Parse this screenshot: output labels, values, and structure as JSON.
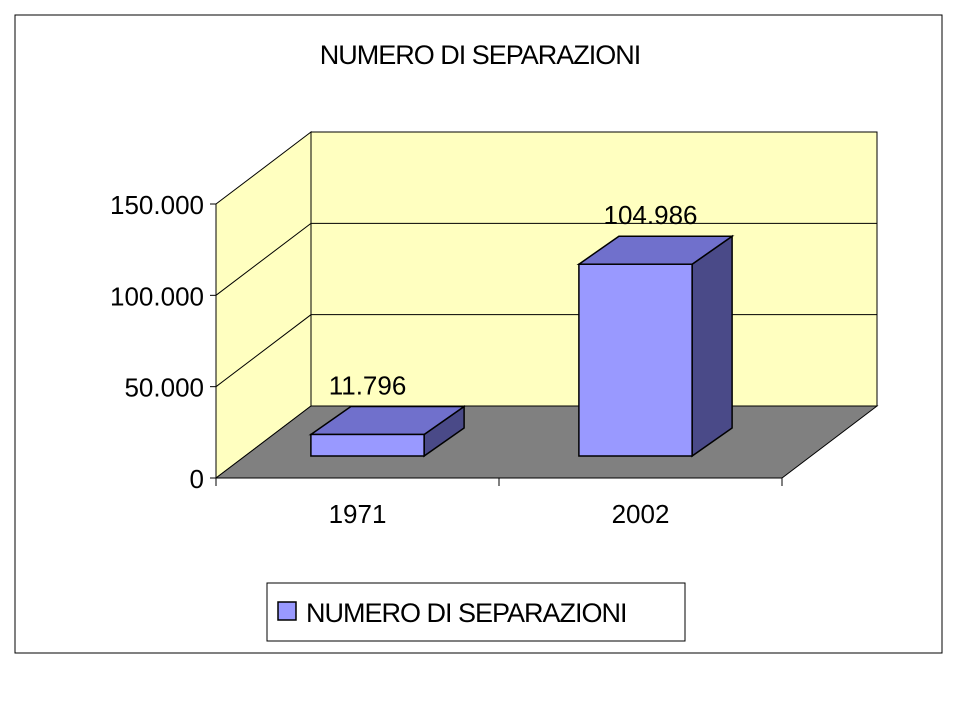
{
  "chart_data": {
    "type": "bar",
    "title": "NUMERO DI SEPARAZIONI",
    "categories": [
      "1971",
      "2002"
    ],
    "series": [
      {
        "name": "NUMERO DI SEPARAZIONI",
        "values": [
          11796,
          104986
        ]
      }
    ],
    "data_labels": [
      "11.796",
      "104.986"
    ],
    "y_ticks": [
      0,
      50000,
      100000,
      150000
    ],
    "y_tick_labels": [
      "0",
      "50.000",
      "100.000",
      "150.000"
    ],
    "ylim": [
      0,
      150000
    ],
    "xlabel": "",
    "ylabel": "",
    "grid": true,
    "legend": "bottom",
    "three_d": true,
    "colors": {
      "bar_front": "#9999ff",
      "bar_top": "#7070cc",
      "bar_side": "#4a4a88",
      "back_wall": "#ffffc0",
      "side_wall": "#ffffc0",
      "floor": "#808080"
    }
  }
}
